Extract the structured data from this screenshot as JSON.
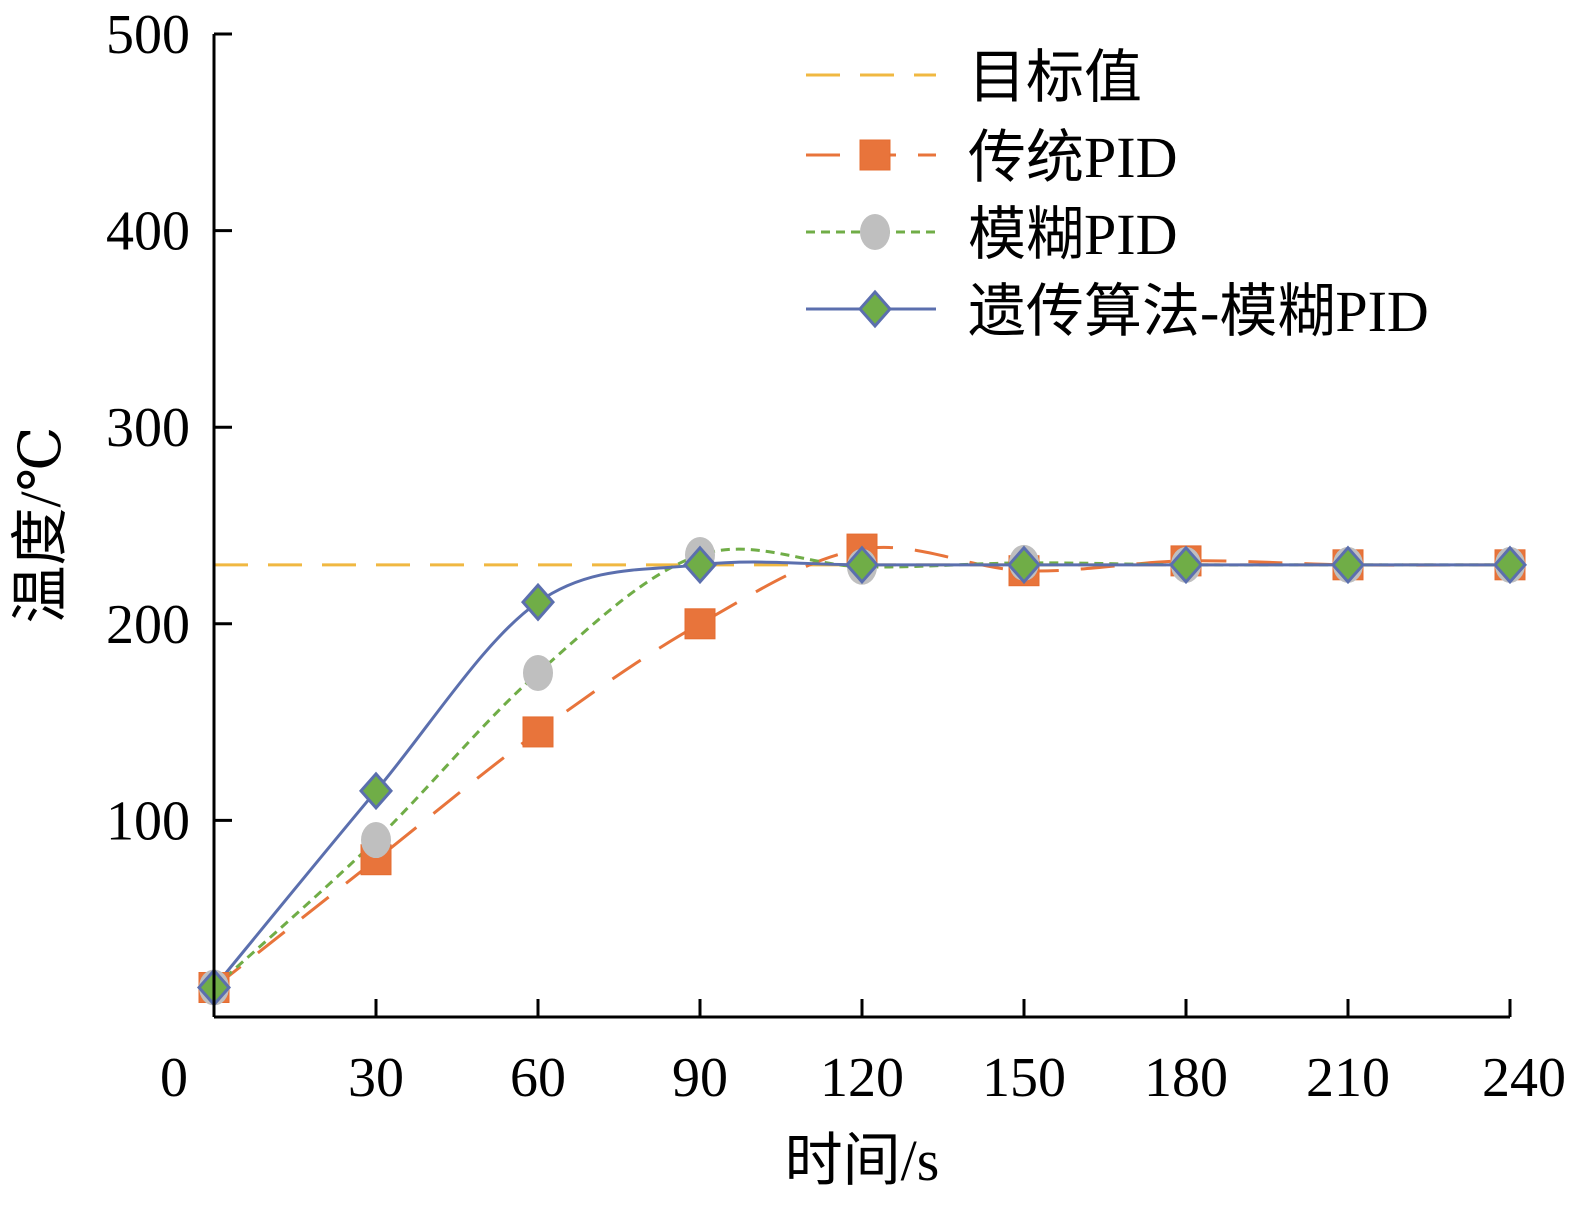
{
  "chart_data": {
    "type": "line",
    "xlabel": "时间/s",
    "ylabel": "温度/℃",
    "xlim": [
      0,
      240
    ],
    "ylim": [
      0,
      500
    ],
    "x_ticks": [
      0,
      30,
      60,
      90,
      120,
      150,
      180,
      210,
      240
    ],
    "y_ticks": [
      100,
      200,
      300,
      400,
      500
    ],
    "x_tick_labels": [
      "0",
      "30",
      "60",
      "90",
      "120",
      "150",
      "180",
      "210",
      "240"
    ],
    "y_tick_labels": [
      "100",
      "200",
      "300",
      "400",
      "500"
    ],
    "grid": false,
    "legend_position": "top-right",
    "target": {
      "name": "目标值",
      "value": 230,
      "color": "#f0b841"
    },
    "series": [
      {
        "name": "传统PID",
        "color": "#e8743b",
        "line_style": "long-dash",
        "marker": "square",
        "x": [
          0,
          30,
          60,
          90,
          120,
          150,
          180,
          210,
          240
        ],
        "y": [
          15,
          80,
          145,
          200,
          238,
          227,
          232,
          230,
          230
        ]
      },
      {
        "name": "模糊PID",
        "color": "#70ad47",
        "marker_color": "#bfbfbf",
        "line_style": "short-dash",
        "marker": "circle",
        "x": [
          0,
          30,
          60,
          90,
          120,
          150,
          180,
          210,
          240
        ],
        "y": [
          15,
          90,
          175,
          235,
          229,
          231,
          230,
          230,
          230
        ]
      },
      {
        "name": "遗传算法-模糊PID",
        "color": "#5b6fae",
        "marker_color": "#70ad47",
        "line_style": "solid",
        "marker": "diamond",
        "x": [
          0,
          30,
          60,
          90,
          120,
          150,
          180,
          210,
          240
        ],
        "y": [
          15,
          115,
          211,
          230,
          230,
          230,
          230,
          230,
          230
        ]
      }
    ]
  }
}
